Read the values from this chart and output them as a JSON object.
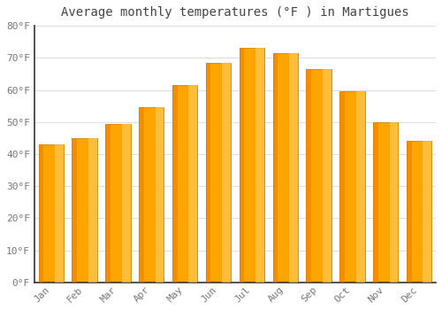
{
  "title": "Average monthly temperatures (°F ) in Martigues",
  "months": [
    "Jan",
    "Feb",
    "Mar",
    "Apr",
    "May",
    "Jun",
    "Jul",
    "Aug",
    "Sep",
    "Oct",
    "Nov",
    "Dec"
  ],
  "values": [
    43,
    45,
    49.5,
    54.5,
    61.5,
    68.5,
    73,
    71.5,
    66.5,
    59.5,
    50,
    44
  ],
  "bar_color_main": "#FFA500",
  "bar_color_light": "#FFD060",
  "bar_color_dark": "#E87800",
  "bar_edge_color": "#CC8800",
  "background_color": "#FFFFFF",
  "plot_bg_color": "#FFFFFF",
  "grid_color": "#DDDDDD",
  "text_color": "#777777",
  "ylim": [
    0,
    80
  ],
  "yticks": [
    0,
    10,
    20,
    30,
    40,
    50,
    60,
    70,
    80
  ],
  "ytick_labels": [
    "0°F",
    "10°F",
    "20°F",
    "30°F",
    "40°F",
    "50°F",
    "60°F",
    "70°F",
    "80°F"
  ],
  "title_fontsize": 10,
  "tick_fontsize": 8,
  "title_color": "#444444",
  "bar_width": 0.75
}
